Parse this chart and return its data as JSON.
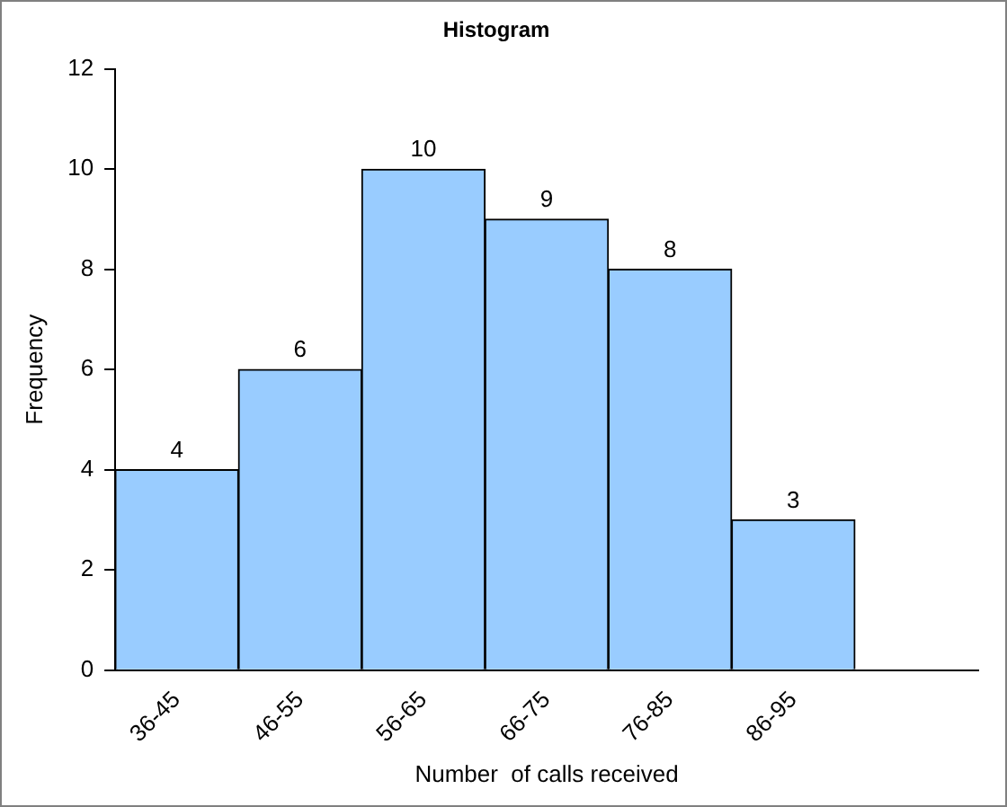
{
  "chart_data": {
    "type": "bar",
    "title": "Histogram",
    "xlabel": "Number  of calls received",
    "ylabel": "Frequency",
    "categories": [
      "36-45",
      "46-55",
      "56-65",
      "66-75",
      "76-85",
      "86-95",
      null
    ],
    "values": [
      4,
      6,
      10,
      9,
      8,
      3,
      null
    ],
    "color": "#99ccff",
    "ylim": [
      0,
      12
    ],
    "yticks": [
      0,
      2,
      4,
      6,
      8,
      10,
      12
    ],
    "grid": false,
    "legend": false,
    "data_labels": true
  }
}
